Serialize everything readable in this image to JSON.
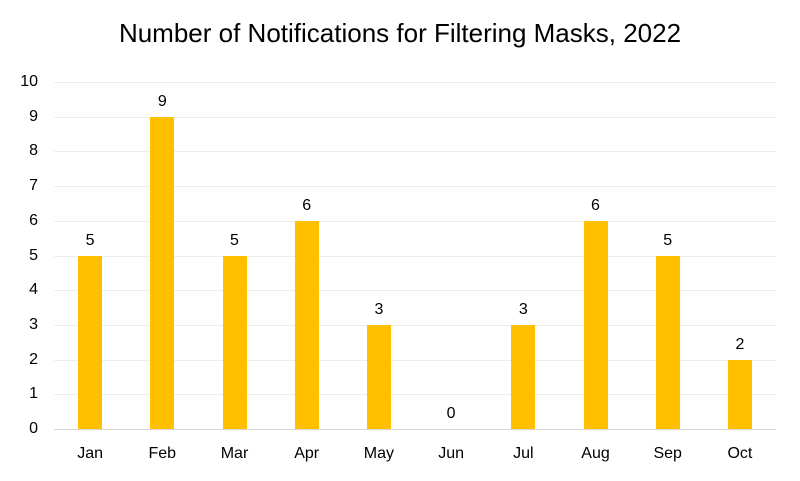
{
  "chart_data": {
    "type": "bar",
    "title": "Number of Notifications for Filtering Masks, 2022",
    "categories": [
      "Jan",
      "Feb",
      "Mar",
      "Apr",
      "May",
      "Jun",
      "Jul",
      "Aug",
      "Sep",
      "Oct"
    ],
    "values": [
      5,
      9,
      5,
      6,
      3,
      0,
      3,
      6,
      5,
      2
    ],
    "data_labels": [
      "5",
      "9",
      "5",
      "6",
      "3",
      "0",
      "3",
      "6",
      "5",
      "2"
    ],
    "xlabel": "",
    "ylabel": "",
    "ylim": [
      0,
      10
    ],
    "yticks": [
      0,
      1,
      2,
      3,
      4,
      5,
      6,
      7,
      8,
      9,
      10
    ],
    "ytick_interval": 1,
    "grid": true,
    "legend": "none",
    "colors": {
      "bar": "#FFC000",
      "text": "#000000",
      "gridline": "#ededed",
      "axis_line": "#d6d6d6",
      "background": "#ffffff"
    }
  }
}
